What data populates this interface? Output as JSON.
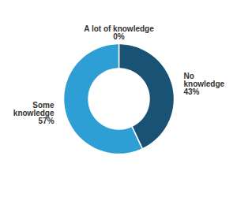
{
  "chart_data": {
    "type": "pie",
    "categories": [
      "A lot of knowledge",
      "No\nknowledge",
      "Some\nknowledge"
    ],
    "values": [
      0.001,
      43,
      57
    ],
    "value_labels": [
      "0%",
      "43%",
      "57%"
    ],
    "data_labels": true,
    "colors": [
      "#2980b9",
      "#1a5276",
      "#2e9fd4"
    ]
  }
}
